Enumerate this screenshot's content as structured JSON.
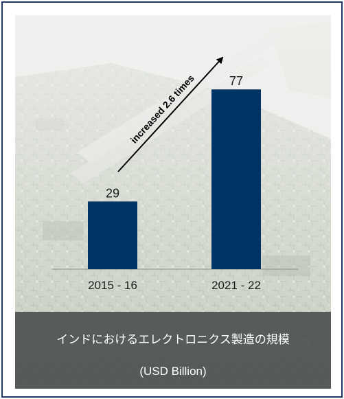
{
  "colors": {
    "bar": "#003366",
    "frame": "#1f3864",
    "caption_band": "#464b48",
    "text_dark": "#1a1a1a",
    "text_light": "#ffffff"
  },
  "caption": {
    "title": "インドにおけるエレクトロニクス製造の規模",
    "unit": "(USD Billion)"
  },
  "annotation": {
    "text": "increased 2.6 times"
  },
  "chart_data": {
    "type": "bar",
    "categories": [
      "2015 - 16",
      "2021 - 22"
    ],
    "values": [
      29,
      77
    ],
    "data_labels": [
      "29",
      "77"
    ],
    "title": "インドにおけるエレクトロニクス製造の規模",
    "xlabel": "",
    "ylabel": "(USD Billion)",
    "ylim": [
      0,
      100
    ],
    "grid": false,
    "legend": "none",
    "annotations": [
      "increased 2.6 times"
    ]
  }
}
